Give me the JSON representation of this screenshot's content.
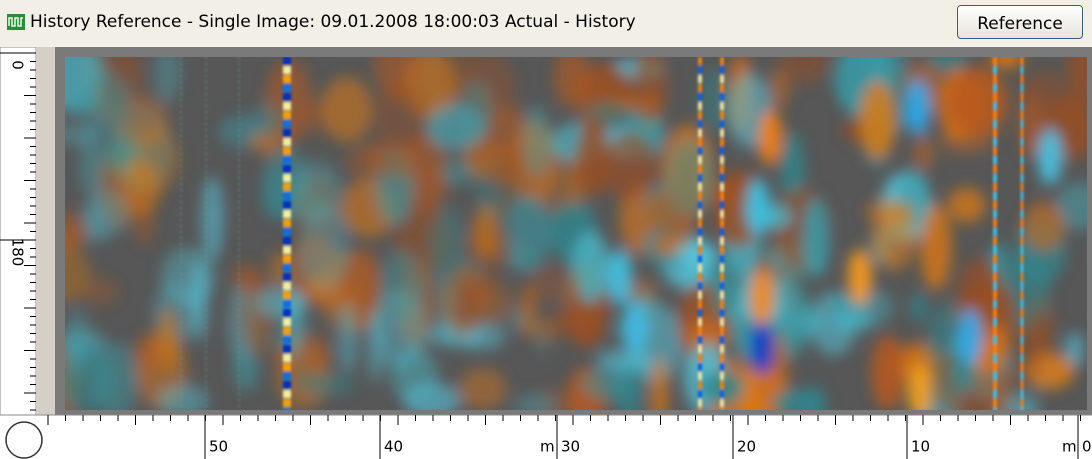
{
  "window": {
    "title": "History Reference - Single Image: 09.01.2008 18:00:03 Actual - History",
    "button": "Reference"
  },
  "left_ruler": {
    "labels": [
      "0",
      "180"
    ]
  },
  "bottom_ruler": {
    "labels": [
      "50",
      "40",
      "30",
      "20",
      "10",
      "0"
    ],
    "unit": "m"
  }
}
